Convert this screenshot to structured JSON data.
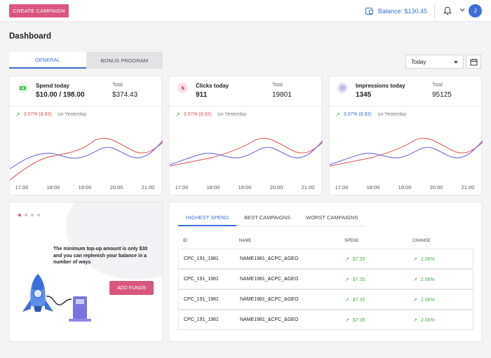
{
  "topbar": {
    "create_campaign": "CREATE CAMPAIGN",
    "balance_label": "Balance: $130.45",
    "avatar_initial": "J",
    "accent": "#d9577f",
    "primary": "#3d6fd8"
  },
  "page_title": "Dashboard",
  "tabs": [
    {
      "label": "GENERAL",
      "active": true
    },
    {
      "label": "BONUS PROGRAM",
      "active": false
    }
  ],
  "date_filter": {
    "selected": "Today"
  },
  "stats": [
    {
      "label": "Spend today",
      "value": "$10.00 / 198.00",
      "total_label": "Total",
      "total_value": "$374.43",
      "change": "3.07% (8.93)",
      "change_suffix": "on Yesterday",
      "icon": "cash-icon"
    },
    {
      "label": "Clicks today",
      "value": "911",
      "total_label": "Total",
      "total_value": "19801",
      "change": "3.07% (8.93)",
      "change_suffix": "on Yesterday",
      "icon": "pointer-click-icon"
    },
    {
      "label": "Impressions today",
      "value": "1345",
      "total_label": "Total",
      "total_value": "95125",
      "change": "3.07% (8.93)",
      "change_suffix": "on Yesterday",
      "icon": "eye-icon"
    }
  ],
  "x_ticks": [
    "17:00",
    "18:00",
    "19:00",
    "20:00",
    "21:00"
  ],
  "promo": {
    "message": "The minimum top-up amount is only $30 and you can replenish your balance in a number of ways",
    "button": "ADD FUNDS"
  },
  "campaigns": {
    "tabs": [
      "HIGHEST SPEND",
      "BEST CAMPAIGNS",
      "WORST CAMPAIGNS"
    ],
    "columns": [
      "ID",
      "NAME",
      "SPEND",
      "CHANGE"
    ],
    "rows": [
      {
        "id": "CPC_191_1981",
        "name": "NAME1981_&CPC_&GEO",
        "spend": "$7.35",
        "change": "2.06%"
      },
      {
        "id": "CPC_191_1981",
        "name": "NAME1981_&CPC_&GEO",
        "spend": "$7.35",
        "change": "2.06%"
      },
      {
        "id": "CPC_191_1981",
        "name": "NAME1981_&CPC_&GEO",
        "spend": "$7.35",
        "change": "2.06%"
      },
      {
        "id": "CPC_191_1981",
        "name": "NAME1981_&CPC_&GEO",
        "spend": "$7.35",
        "change": "2.06%"
      }
    ]
  }
}
